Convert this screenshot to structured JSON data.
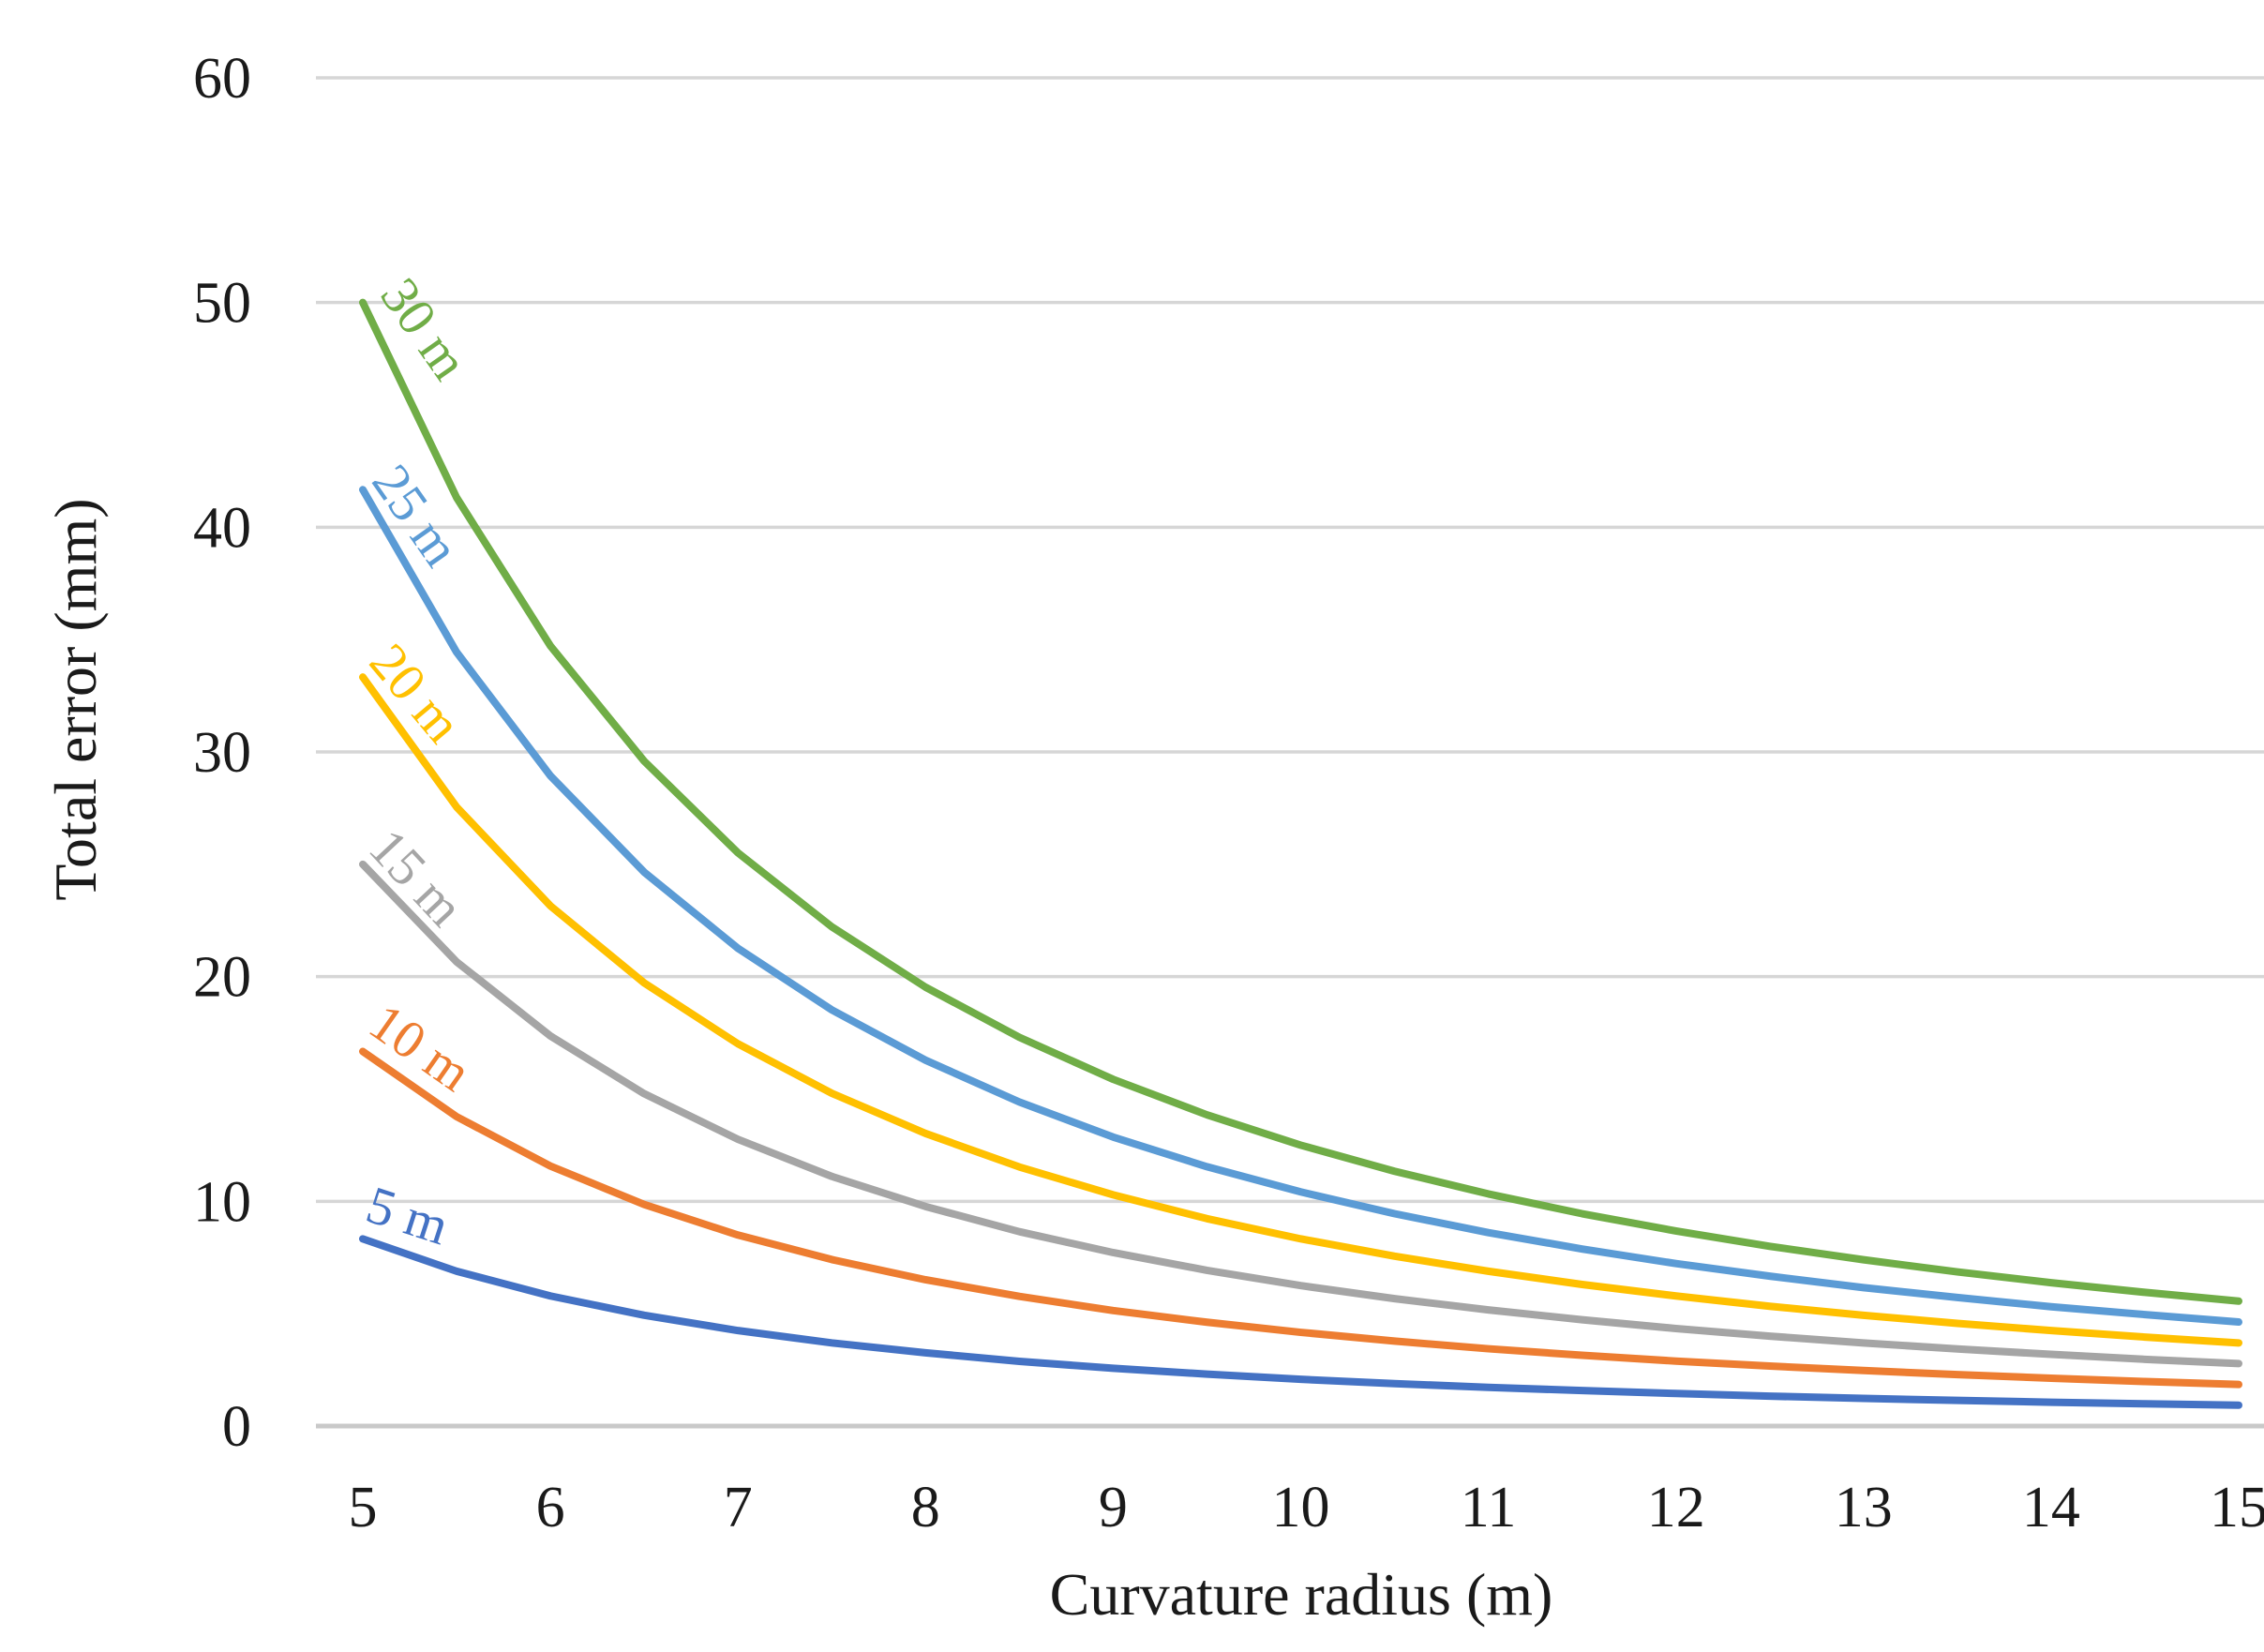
{
  "chart_data": {
    "type": "line",
    "title": "",
    "xlabel": "Curvature radius (m)",
    "ylabel": "Total error (mm)",
    "x_start": 5,
    "x_step": 0.5,
    "x": [
      5,
      5.5,
      6,
      6.5,
      7,
      7.5,
      8,
      8.5,
      9,
      9.5,
      10,
      10.5,
      11,
      11.5,
      12,
      12.5,
      13,
      13.5,
      14,
      14.5,
      15
    ],
    "x_tick_labels": [
      "5",
      "6",
      "7",
      "8",
      "9",
      "10",
      "11",
      "12",
      "13",
      "14",
      "15"
    ],
    "y_ticks": [
      "0",
      "10",
      "20",
      "30",
      "40",
      "50",
      "60"
    ],
    "xlim": [
      5,
      15
    ],
    "ylim": [
      0,
      60
    ],
    "grid": "horizontal",
    "legend_position": "inline-curve-labels",
    "background": "#ffffff",
    "gridline_color": "#d6d6d6",
    "series": [
      {
        "name": "5 m",
        "color": "#4472C4",
        "values": [
          8.33,
          6.89,
          5.79,
          4.93,
          4.25,
          3.7,
          3.26,
          2.88,
          2.57,
          2.31,
          2.08,
          1.89,
          1.72,
          1.58,
          1.45,
          1.33,
          1.23,
          1.14,
          1.06,
          0.99,
          0.93
        ]
      },
      {
        "name": "10 m",
        "color": "#ED7D31",
        "values": [
          16.67,
          13.77,
          11.57,
          9.86,
          8.5,
          7.41,
          6.51,
          5.77,
          5.14,
          4.62,
          4.17,
          3.78,
          3.44,
          3.15,
          2.89,
          2.67,
          2.47,
          2.29,
          2.13,
          1.98,
          1.85
        ]
      },
      {
        "name": "15 m",
        "color": "#A5A5A5",
        "values": [
          25.0,
          20.66,
          17.36,
          14.79,
          12.76,
          11.11,
          9.77,
          8.65,
          7.72,
          6.93,
          6.25,
          5.67,
          5.17,
          4.73,
          4.34,
          4.0,
          3.7,
          3.43,
          3.19,
          2.97,
          2.78
        ]
      },
      {
        "name": "20 m",
        "color": "#FFC000",
        "values": [
          33.33,
          27.55,
          23.15,
          19.72,
          17.01,
          14.81,
          13.02,
          11.53,
          10.29,
          9.23,
          8.33,
          7.56,
          6.89,
          6.3,
          5.79,
          5.33,
          4.93,
          4.57,
          4.25,
          3.96,
          3.7
        ]
      },
      {
        "name": "25 m",
        "color": "#5B9BD5",
        "values": [
          41.67,
          34.44,
          28.94,
          24.65,
          21.26,
          18.52,
          16.28,
          14.42,
          12.86,
          11.54,
          10.42,
          9.45,
          8.61,
          7.88,
          7.23,
          6.67,
          6.16,
          5.72,
          5.31,
          4.96,
          4.63
        ]
      },
      {
        "name": "30 m",
        "color": "#70AD47",
        "values": [
          50.0,
          41.32,
          34.72,
          29.59,
          25.51,
          22.22,
          19.53,
          17.3,
          15.43,
          13.85,
          12.5,
          11.34,
          10.33,
          9.45,
          8.68,
          8.0,
          7.4,
          6.86,
          6.38,
          5.95,
          5.56
        ]
      }
    ],
    "series_labels": [
      {
        "text": "5 m",
        "x": 393,
        "y": 1286,
        "angle": 18
      },
      {
        "text": "10 m",
        "x": 405,
        "y": 1106,
        "angle": 35
      },
      {
        "text": "15 m",
        "x": 400,
        "y": 924,
        "angle": 47
      },
      {
        "text": "20 m",
        "x": 399,
        "y": 727,
        "angle": 50
      },
      {
        "text": "25 m",
        "x": 399,
        "y": 537,
        "angle": 55
      },
      {
        "text": "30 m",
        "x": 408,
        "y": 338,
        "angle": 55
      }
    ],
    "geometry": {
      "plot_left": 297,
      "plot_right": 2398,
      "plot_top": 67,
      "plot_bottom": 1505,
      "first_point_x": 347,
      "point_spacing": 100.05,
      "ytick_right_edge": 228,
      "xtick_baseline": 1612,
      "xtitle_x": 1348,
      "xtitle_baseline": 1706,
      "ytitle_x": 62,
      "ytitle_y": 730
    }
  }
}
